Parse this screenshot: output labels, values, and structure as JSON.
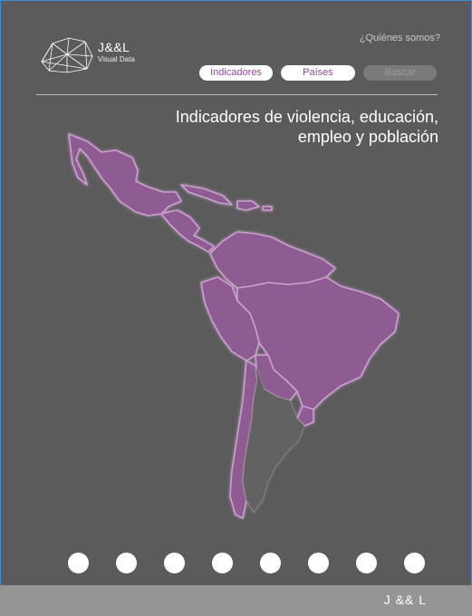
{
  "brand": {
    "name": "J&&L",
    "subtitle": "Visual Data"
  },
  "header": {
    "about_link": "¿Quiénes somos?"
  },
  "nav": {
    "indicadores": "Indicadores",
    "paises": "Países",
    "buscar": "Buscar"
  },
  "main": {
    "title_line1": "Indicadores de violencia, educación,",
    "title_line2": "empleo y población"
  },
  "colors": {
    "background": "#5b5b5b",
    "map_fill": "#8e5b92",
    "accent": "#8b4b9a"
  },
  "icons": {
    "logo": "network-polygon-icon"
  },
  "pagination": {
    "count": 8
  },
  "footer": {
    "text": "J && L"
  }
}
